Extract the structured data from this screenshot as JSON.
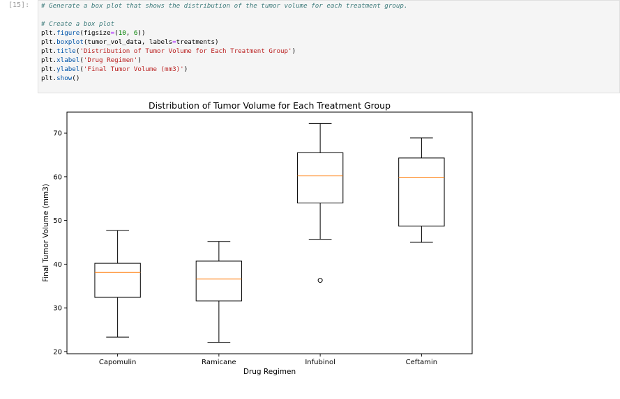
{
  "cell": {
    "prompt": "[15]:",
    "code_lines": [
      [
        {
          "t": "# Generate a box plot that shows the distribution of the tumor volume for each treatment group.",
          "c": "c-comment"
        }
      ],
      [],
      [
        {
          "t": "# Create a box plot",
          "c": "c-comment"
        }
      ],
      [
        {
          "t": "plt.",
          "c": ""
        },
        {
          "t": "figure",
          "c": "c-fn"
        },
        {
          "t": "(figsize",
          "c": ""
        },
        {
          "t": "=",
          "c": "c-op"
        },
        {
          "t": "(",
          "c": ""
        },
        {
          "t": "10",
          "c": "c-num"
        },
        {
          "t": ", ",
          "c": ""
        },
        {
          "t": "6",
          "c": "c-num"
        },
        {
          "t": "))",
          "c": ""
        }
      ],
      [
        {
          "t": "plt.",
          "c": ""
        },
        {
          "t": "boxplot",
          "c": "c-fn"
        },
        {
          "t": "(tumor_vol_data, labels",
          "c": ""
        },
        {
          "t": "=",
          "c": "c-op"
        },
        {
          "t": "treatments)",
          "c": ""
        }
      ],
      [
        {
          "t": "plt.",
          "c": ""
        },
        {
          "t": "title",
          "c": "c-fn"
        },
        {
          "t": "(",
          "c": ""
        },
        {
          "t": "'Distribution of Tumor Volume for Each Treatment Group'",
          "c": "c-str"
        },
        {
          "t": ")",
          "c": ""
        }
      ],
      [
        {
          "t": "plt.",
          "c": ""
        },
        {
          "t": "xlabel",
          "c": "c-fn"
        },
        {
          "t": "(",
          "c": ""
        },
        {
          "t": "'Drug Regimen'",
          "c": "c-str"
        },
        {
          "t": ")",
          "c": ""
        }
      ],
      [
        {
          "t": "plt.",
          "c": ""
        },
        {
          "t": "ylabel",
          "c": "c-fn"
        },
        {
          "t": "(",
          "c": ""
        },
        {
          "t": "'Final Tumor Volume (mm3)'",
          "c": "c-str"
        },
        {
          "t": ")",
          "c": ""
        }
      ],
      [
        {
          "t": "plt.",
          "c": ""
        },
        {
          "t": "show",
          "c": "c-fn"
        },
        {
          "t": "()",
          "c": ""
        }
      ]
    ]
  },
  "chart_data": {
    "type": "box",
    "title": "Distribution of Tumor Volume for Each Treatment Group",
    "xlabel": "Drug Regimen",
    "ylabel": "Final Tumor Volume (mm3)",
    "ylim": [
      19.5,
      74.8
    ],
    "yticks": [
      20,
      30,
      40,
      50,
      60,
      70
    ],
    "categories": [
      "Capomulin",
      "Ramicane",
      "Infubinol",
      "Ceftamin"
    ],
    "boxes": [
      {
        "whislo": 23.3,
        "q1": 32.4,
        "med": 38.1,
        "q3": 40.2,
        "whishi": 47.7,
        "fliers": []
      },
      {
        "whislo": 22.1,
        "q1": 31.6,
        "med": 36.6,
        "q3": 40.7,
        "whishi": 45.2,
        "fliers": []
      },
      {
        "whislo": 45.7,
        "q1": 54.0,
        "med": 60.2,
        "q3": 65.5,
        "whishi": 72.2,
        "fliers": [
          36.3
        ]
      },
      {
        "whislo": 45.0,
        "q1": 48.7,
        "med": 59.9,
        "q3": 64.3,
        "whishi": 68.9,
        "fliers": []
      }
    ],
    "colors": {
      "box": "#000000",
      "median": "#ff7f0e"
    }
  }
}
